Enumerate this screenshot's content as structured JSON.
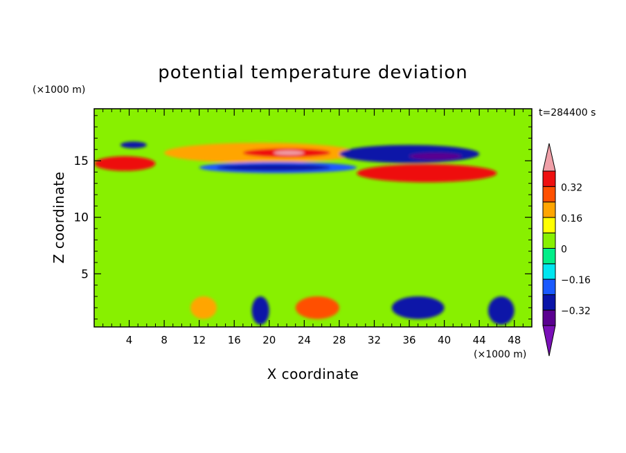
{
  "chart_data": {
    "type": "heatmap",
    "title": "potential temperature deviation",
    "xlabel": "X coordinate",
    "ylabel": "Z coordinate",
    "x_unit": "(×1000 m)",
    "y_unit": "(×1000 m)",
    "time_label": "t=284400 s",
    "xlim": [
      0,
      50
    ],
    "ylim": [
      0.3,
      19.6
    ],
    "x_ticks": [
      4,
      8,
      12,
      16,
      20,
      24,
      28,
      32,
      36,
      40,
      44,
      48
    ],
    "x_tick_labels": [
      "4",
      "8",
      "12",
      "16",
      "20",
      "24",
      "28",
      "32",
      "36",
      "40",
      "44",
      "48"
    ],
    "y_ticks": [
      5,
      10,
      15
    ],
    "y_tick_labels": [
      "5",
      "10",
      "15"
    ],
    "grid": false,
    "background_color": "#88f000",
    "colorbar": {
      "labels": [
        "0.32",
        "0.16",
        "0",
        "−0.16",
        "−0.32"
      ],
      "label_values": [
        0.32,
        0.16,
        0,
        -0.16,
        -0.32
      ],
      "levels": [
        -0.4,
        -0.32,
        -0.24,
        -0.16,
        -0.08,
        0,
        0.08,
        0.16,
        0.24,
        0.32,
        0.4
      ],
      "colors": [
        "#7a10b8",
        "#5a0090",
        "#0a14a8",
        "#1a5aff",
        "#00e6f0",
        "#00ee88",
        "#88f000",
        "#ffff00",
        "#ffa500",
        "#ff5000",
        "#ee1010",
        "#f0a0a8"
      ]
    },
    "features": [
      {
        "name": "upper-band-positive",
        "color": "#ffa500",
        "x": [
          8,
          30
        ],
        "z": [
          14.8,
          16.6
        ]
      },
      {
        "name": "upper-band-core",
        "color": "#ee1010",
        "x": [
          17,
          27
        ],
        "z": [
          15.3,
          16.1
        ]
      },
      {
        "name": "upper-band-peak",
        "color": "#f0a0a8",
        "x": [
          20.5,
          24
        ],
        "z": [
          15.5,
          15.9
        ]
      },
      {
        "name": "lower-band-negative",
        "color": "#1a5aff",
        "x": [
          12,
          30
        ],
        "z": [
          13.9,
          14.9
        ]
      },
      {
        "name": "lower-band-core",
        "color": "#0a14a8",
        "x": [
          14,
          27
        ],
        "z": [
          14.1,
          14.7
        ]
      },
      {
        "name": "left-wave-positive",
        "color": "#ee1010",
        "x": [
          0,
          7
        ],
        "z": [
          14.1,
          15.4
        ]
      },
      {
        "name": "left-blue-cell",
        "color": "#0a14a8",
        "x": [
          3,
          6
        ],
        "z": [
          16.1,
          16.7
        ]
      },
      {
        "name": "right-negative-cell",
        "color": "#0a14a8",
        "x": [
          28,
          44
        ],
        "z": [
          14.8,
          16.4
        ]
      },
      {
        "name": "right-negative-core",
        "color": "#5a0090",
        "x": [
          36,
          42
        ],
        "z": [
          15.1,
          15.7
        ]
      },
      {
        "name": "right-positive-band",
        "color": "#ee1010",
        "x": [
          30,
          46
        ],
        "z": [
          13.1,
          14.7
        ]
      },
      {
        "name": "surface-positive-1",
        "color": "#ffa500",
        "x": [
          11,
          14
        ],
        "z": [
          1,
          3
        ]
      },
      {
        "name": "surface-positive-2",
        "color": "#ff5000",
        "x": [
          23,
          28
        ],
        "z": [
          1,
          3
        ]
      },
      {
        "name": "surface-negative-1",
        "color": "#0a14a8",
        "x": [
          18,
          20
        ],
        "z": [
          0.5,
          3
        ]
      },
      {
        "name": "surface-negative-2",
        "color": "#0a14a8",
        "x": [
          34,
          40
        ],
        "z": [
          1,
          3
        ]
      },
      {
        "name": "surface-negative-3",
        "color": "#0a14a8",
        "x": [
          45,
          48
        ],
        "z": [
          0.5,
          3
        ]
      }
    ]
  }
}
